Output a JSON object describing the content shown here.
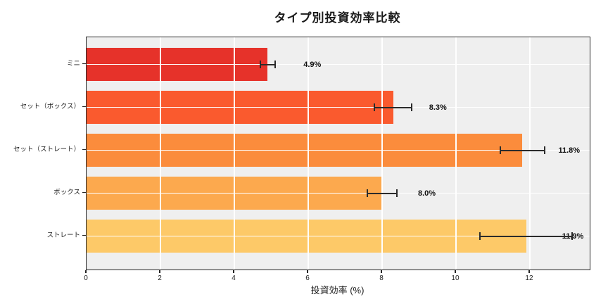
{
  "figure": {
    "title": "タイプ別投資効率比較",
    "xlabel": "投資効率 (%)"
  },
  "chart_data": {
    "type": "bar",
    "orientation": "horizontal",
    "title": "タイプ別投資効率比較",
    "xlabel": "投資効率 (%)",
    "ylabel": "",
    "categories": [
      "ミニ",
      "セット（ボックス）",
      "セット（ストレート）",
      "ボックス",
      "ストレート"
    ],
    "values": [
      4.9,
      8.3,
      11.8,
      8.0,
      11.9
    ],
    "errors": [
      0.2,
      0.5,
      0.6,
      0.4,
      1.25
    ],
    "value_labels": [
      "4.9%",
      "8.3%",
      "11.8%",
      "8.0%",
      "11.9%"
    ],
    "bar_colors": [
      "#e6322a",
      "#fa5a2e",
      "#fb8c3c",
      "#fca94e",
      "#fdc968"
    ],
    "xlim": [
      0,
      13.62
    ],
    "xticks": [
      0,
      2,
      4,
      6,
      8,
      10,
      12
    ],
    "grid": true,
    "grid_color": "#ffffff",
    "plot_bg": "#efefef",
    "frame_color": "#262626",
    "errorbar_color": "#2b2b2b",
    "legend": false
  }
}
